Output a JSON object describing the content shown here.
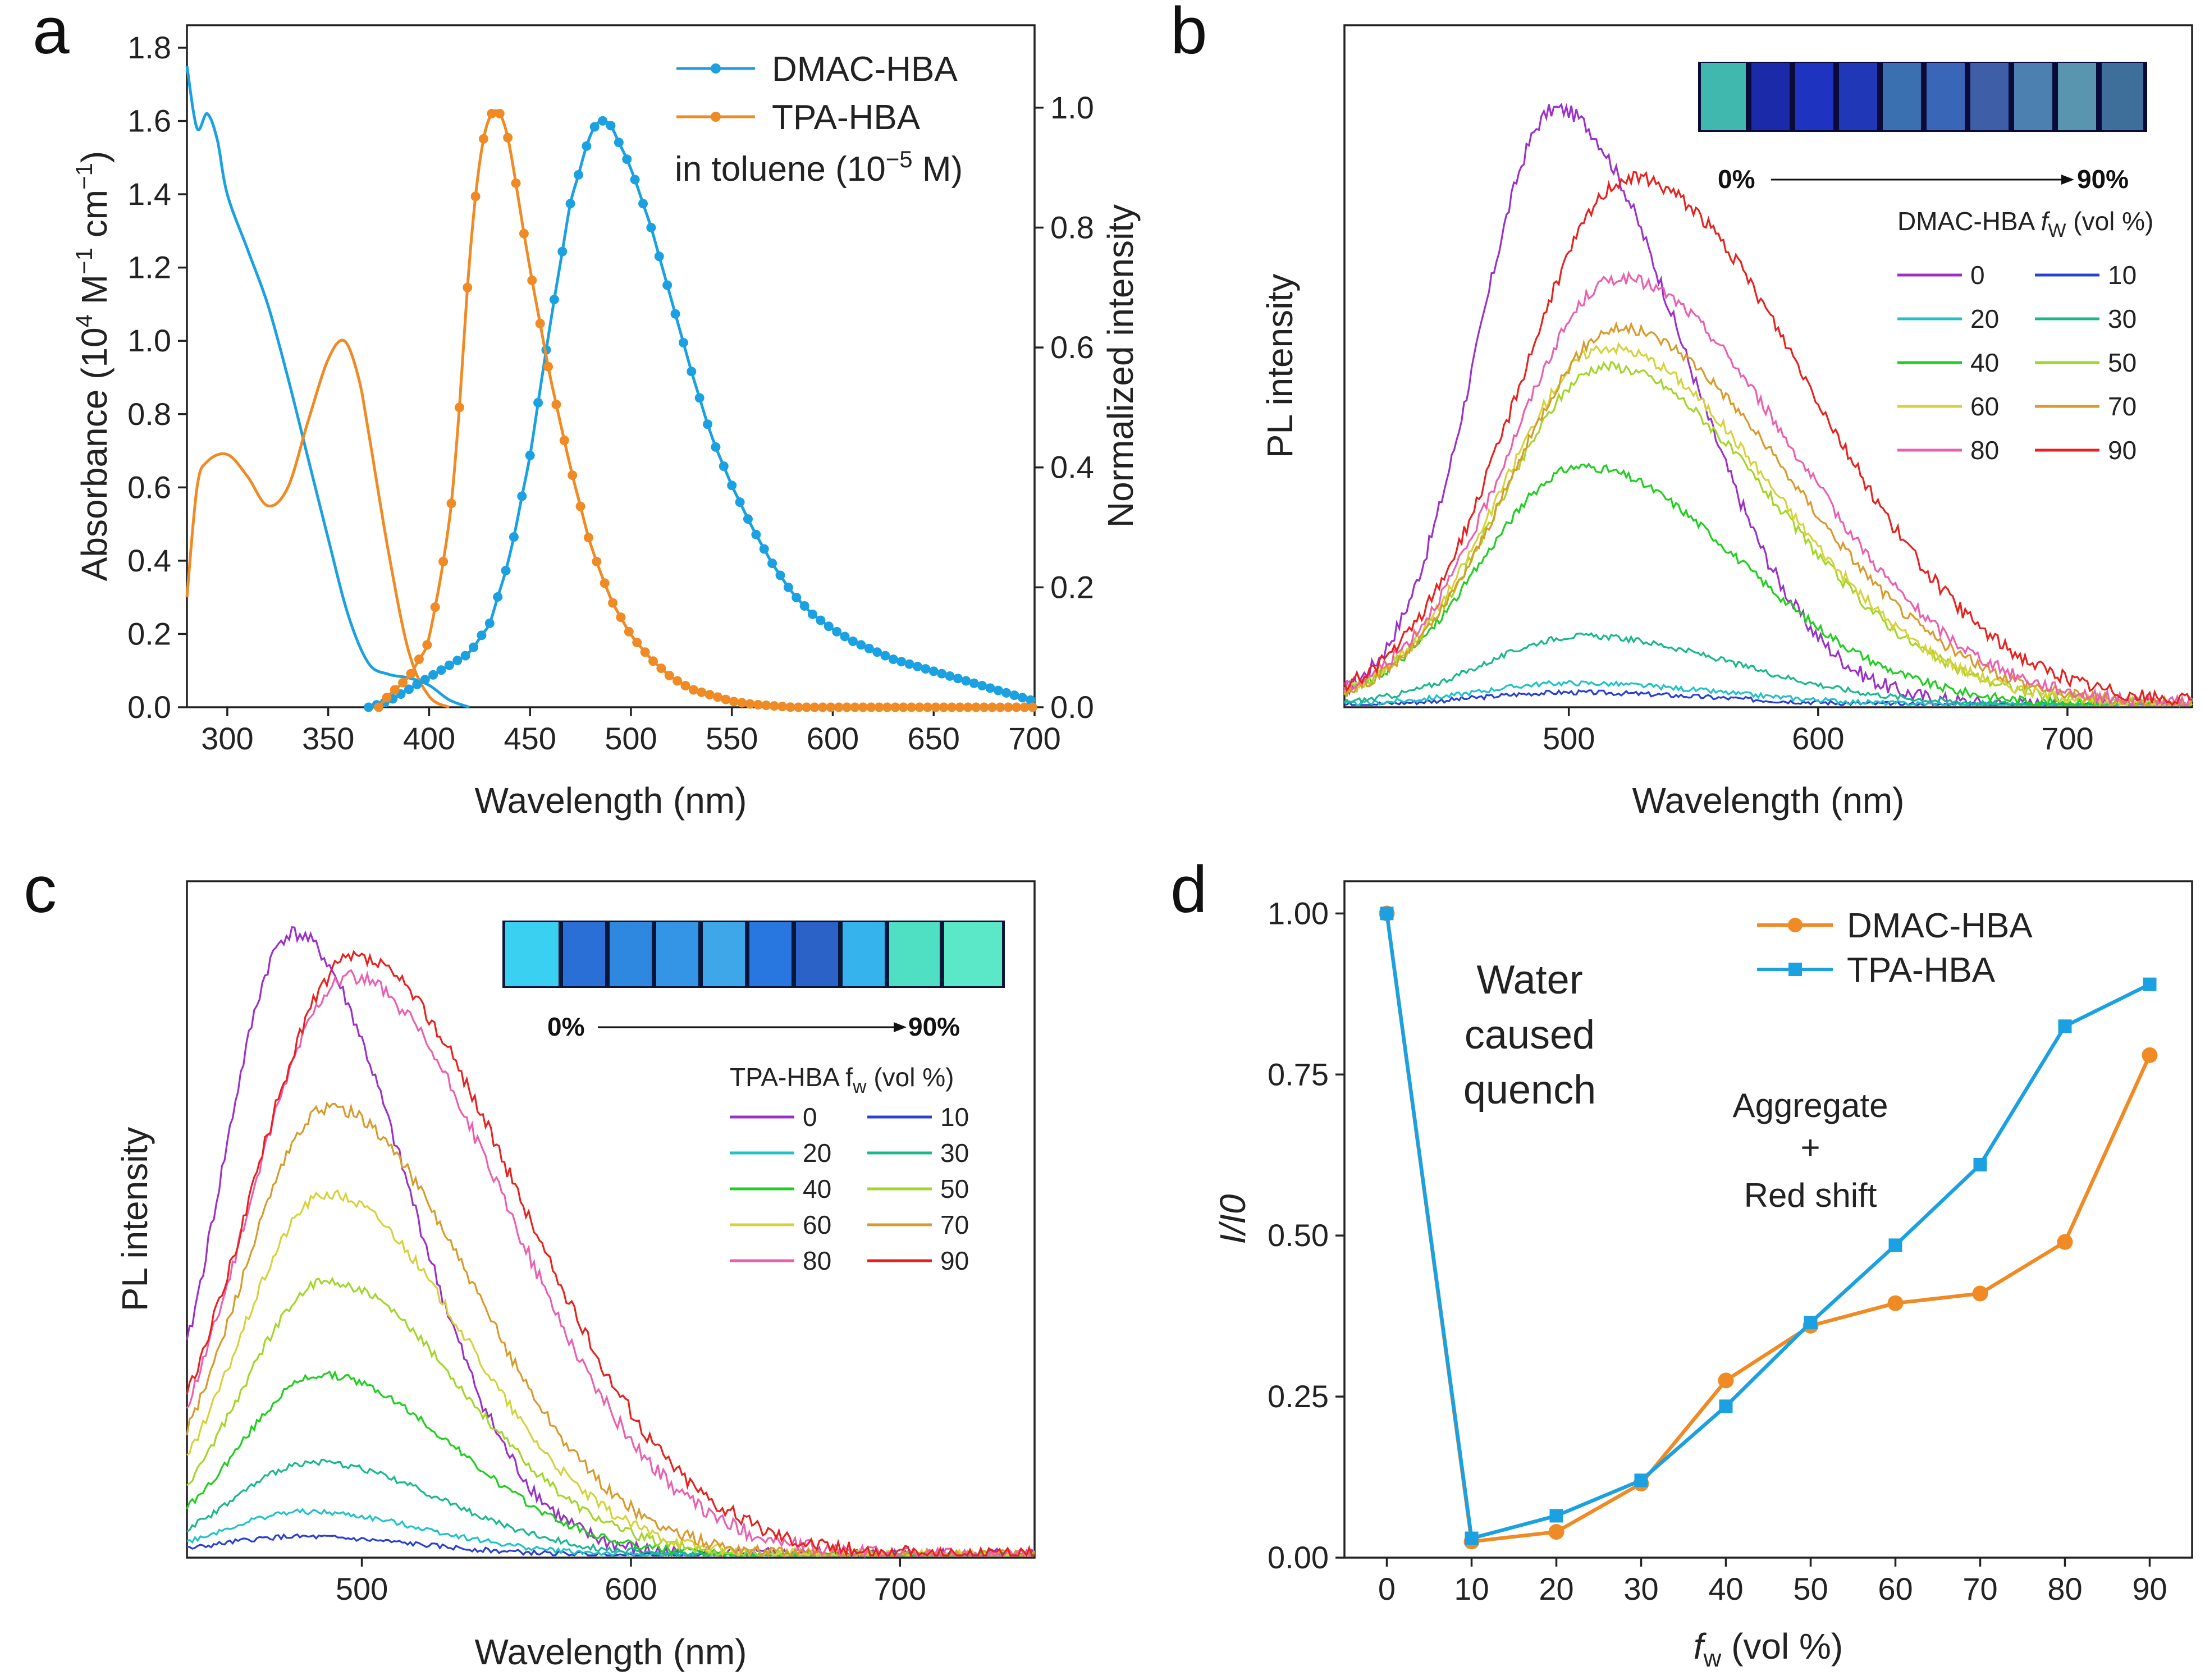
{
  "panels": {
    "a": {
      "letter": "a"
    },
    "b": {
      "letter": "b"
    },
    "c": {
      "letter": "c"
    },
    "d": {
      "letter": "d"
    }
  },
  "chart_data": [
    {
      "panel": "a",
      "type": "line",
      "title": "",
      "xlabel": "Wavelength (nm)",
      "ylabel_left": "Absorbance (10^4 M^-1 cm^-1)",
      "ylabel_left_parts": {
        "pre": "Absorbance (10",
        "sup1": "4",
        "mid": " M",
        "sup2": "−1",
        "mid2": " cm",
        "sup3": "−1",
        "post": ")"
      },
      "ylabel_right": "Normalized intensity",
      "xlim": [
        280,
        700
      ],
      "ylim_left": [
        0,
        1.8
      ],
      "ylim_right": [
        0,
        1.1
      ],
      "xticks": [
        300,
        350,
        400,
        450,
        500,
        550,
        600,
        650,
        700
      ],
      "yticks_left": [
        "0.0",
        "0.2",
        "0.4",
        "0.6",
        "0.8",
        "1.0",
        "1.2",
        "1.4",
        "1.6",
        "1.8"
      ],
      "yticks_right": [
        "0.0",
        "0.2",
        "0.4",
        "0.6",
        "0.8",
        "1.0"
      ],
      "legend": {
        "entries": [
          "DMAC-HBA",
          "TPA-HBA"
        ],
        "note_pre": "in toluene (10",
        "note_sup": "−5",
        "note_post": " M)"
      },
      "series": [
        {
          "name": "DMAC-HBA absorption",
          "axis": "left",
          "color": "#1ba1e2",
          "x": [
            280,
            285,
            290,
            295,
            300,
            310,
            320,
            330,
            340,
            350,
            360,
            370,
            380,
            390,
            400,
            410,
            420
          ],
          "y": [
            1.75,
            1.58,
            1.62,
            1.55,
            1.4,
            1.25,
            1.1,
            0.9,
            0.68,
            0.46,
            0.25,
            0.12,
            0.09,
            0.08,
            0.06,
            0.02,
            0.0
          ]
        },
        {
          "name": "TPA-HBA absorption",
          "axis": "left",
          "color": "#f08a24",
          "x": [
            280,
            285,
            290,
            300,
            310,
            320,
            330,
            340,
            350,
            358,
            365,
            370,
            380,
            390,
            400,
            410
          ],
          "y": [
            0.3,
            0.6,
            0.67,
            0.69,
            0.63,
            0.55,
            0.6,
            0.78,
            0.95,
            1.0,
            0.9,
            0.75,
            0.42,
            0.15,
            0.03,
            0.0
          ]
        },
        {
          "name": "DMAC-HBA PL",
          "axis": "right",
          "color": "#1ba1e2",
          "markers": true,
          "x": [
            370,
            380,
            390,
            400,
            410,
            420,
            430,
            440,
            450,
            460,
            470,
            480,
            485,
            490,
            500,
            510,
            520,
            530,
            540,
            550,
            560,
            570,
            580,
            590,
            600,
            610,
            620,
            630,
            640,
            650,
            660,
            670,
            680,
            690,
            700
          ],
          "y": [
            0.0,
            0.01,
            0.03,
            0.05,
            0.07,
            0.09,
            0.14,
            0.25,
            0.42,
            0.64,
            0.84,
            0.96,
            0.98,
            0.97,
            0.9,
            0.8,
            0.68,
            0.56,
            0.45,
            0.37,
            0.3,
            0.24,
            0.19,
            0.155,
            0.13,
            0.11,
            0.095,
            0.08,
            0.07,
            0.06,
            0.05,
            0.04,
            0.03,
            0.02,
            0.01
          ]
        },
        {
          "name": "TPA-HBA PL",
          "axis": "right",
          "color": "#f08a24",
          "markers": true,
          "x": [
            375,
            380,
            390,
            400,
            410,
            415,
            420,
            425,
            430,
            435,
            440,
            445,
            450,
            460,
            470,
            480,
            490,
            500,
            510,
            520,
            530,
            540,
            550,
            560,
            580,
            600,
            650,
            700
          ],
          "y": [
            0.0,
            0.02,
            0.05,
            0.11,
            0.3,
            0.5,
            0.75,
            0.92,
            0.99,
            0.99,
            0.94,
            0.83,
            0.73,
            0.55,
            0.4,
            0.27,
            0.18,
            0.12,
            0.08,
            0.05,
            0.03,
            0.02,
            0.01,
            0.005,
            0.0,
            0.0,
            0.0,
            0.0
          ]
        }
      ]
    },
    {
      "panel": "b",
      "type": "line",
      "xlabel": "Wavelength (nm)",
      "ylabel": "PL intensity",
      "xlim": [
        410,
        750
      ],
      "xticks": [
        500,
        600,
        700
      ],
      "inset_label_start": "0%",
      "inset_label_end": "90%",
      "legend_title_pre": "DMAC-HBA ",
      "legend_title_var": "f",
      "legend_title_sub": "W",
      "legend_title_post": " (vol %)",
      "series": [
        {
          "name": "0",
          "color": "#9b30c9",
          "peak": 495,
          "amp": 0.95,
          "width": 62
        },
        {
          "name": "10",
          "color": "#2a3fd6",
          "peak": 500,
          "amp": 0.02,
          "width": 70
        },
        {
          "name": "20",
          "color": "#1fc2c9",
          "peak": 500,
          "amp": 0.035,
          "width": 72
        },
        {
          "name": "30",
          "color": "#18b88e",
          "peak": 505,
          "amp": 0.11,
          "width": 75
        },
        {
          "name": "40",
          "color": "#1fcf1f",
          "peak": 505,
          "amp": 0.38,
          "width": 78
        },
        {
          "name": "50",
          "color": "#a3d629",
          "peak": 515,
          "amp": 0.54,
          "width": 82
        },
        {
          "name": "60",
          "color": "#d6d23c",
          "peak": 515,
          "amp": 0.57,
          "width": 82
        },
        {
          "name": "70",
          "color": "#d99a2a",
          "peak": 520,
          "amp": 0.6,
          "width": 84
        },
        {
          "name": "80",
          "color": "#ec5fae",
          "peak": 520,
          "amp": 0.68,
          "width": 85
        },
        {
          "name": "90",
          "color": "#e8211e",
          "peak": 525,
          "amp": 0.84,
          "width": 88
        }
      ]
    },
    {
      "panel": "c",
      "type": "line",
      "xlabel": "Wavelength (nm)",
      "ylabel": "PL intensity",
      "xlim": [
        435,
        750
      ],
      "xticks": [
        500,
        600,
        700
      ],
      "inset_label_start": "0%",
      "inset_label_end": "90%",
      "legend_title_pre": "TPA-HBA f",
      "legend_title_sub": "w",
      "legend_title_post": " (vol %)",
      "series": [
        {
          "name": "0",
          "color": "#9b30c9",
          "peak": 474,
          "amp": 1.0,
          "width": 52
        },
        {
          "name": "10",
          "color": "#2a3fd6",
          "peak": 475,
          "amp": 0.03,
          "width": 55
        },
        {
          "name": "20",
          "color": "#1fc2c9",
          "peak": 478,
          "amp": 0.07,
          "width": 56
        },
        {
          "name": "30",
          "color": "#18b88e",
          "peak": 482,
          "amp": 0.15,
          "width": 58
        },
        {
          "name": "40",
          "color": "#1fcf1f",
          "peak": 485,
          "amp": 0.29,
          "width": 60
        },
        {
          "name": "50",
          "color": "#a3d629",
          "peak": 487,
          "amp": 0.44,
          "width": 62
        },
        {
          "name": "60",
          "color": "#d6d23c",
          "peak": 487,
          "amp": 0.58,
          "width": 63
        },
        {
          "name": "70",
          "color": "#d99a2a",
          "peak": 488,
          "amp": 0.72,
          "width": 65
        },
        {
          "name": "80",
          "color": "#ec5fae",
          "peak": 495,
          "amp": 0.93,
          "width": 72
        },
        {
          "name": "90",
          "color": "#e8211e",
          "peak": 497,
          "amp": 0.96,
          "width": 75
        }
      ]
    },
    {
      "panel": "d",
      "type": "line",
      "xlabel_var": "f",
      "xlabel_sub": "w",
      "xlabel_post": " (vol %)",
      "ylabel": "I/I0",
      "xlim": [
        -5,
        95
      ],
      "ylim": [
        0,
        1.05
      ],
      "xticks": [
        "0",
        "10",
        "20",
        "30",
        "40",
        "50",
        "60",
        "70",
        "80",
        "90"
      ],
      "yticks": [
        "0.00",
        "0.25",
        "0.50",
        "0.75",
        "1.00"
      ],
      "categories": [
        0,
        10,
        20,
        30,
        40,
        50,
        60,
        70,
        80,
        90
      ],
      "series": [
        {
          "name": "DMAC-HBA",
          "color": "#f08a24",
          "marker": "circle",
          "values": [
            1.0,
            0.025,
            0.04,
            0.115,
            0.275,
            0.36,
            0.395,
            0.41,
            0.49,
            0.78
          ]
        },
        {
          "name": "TPA-HBA",
          "color": "#1ba1e2",
          "marker": "square",
          "values": [
            1.0,
            0.03,
            0.065,
            0.12,
            0.235,
            0.365,
            0.485,
            0.61,
            0.825,
            0.89
          ]
        }
      ],
      "annotations": {
        "quench_lines": [
          "Water",
          "caused",
          "quench"
        ],
        "aggregate": "Aggregate",
        "plus": "+",
        "red_shift": "Red shift",
        "red_shift_color": "#e8211e"
      }
    }
  ]
}
